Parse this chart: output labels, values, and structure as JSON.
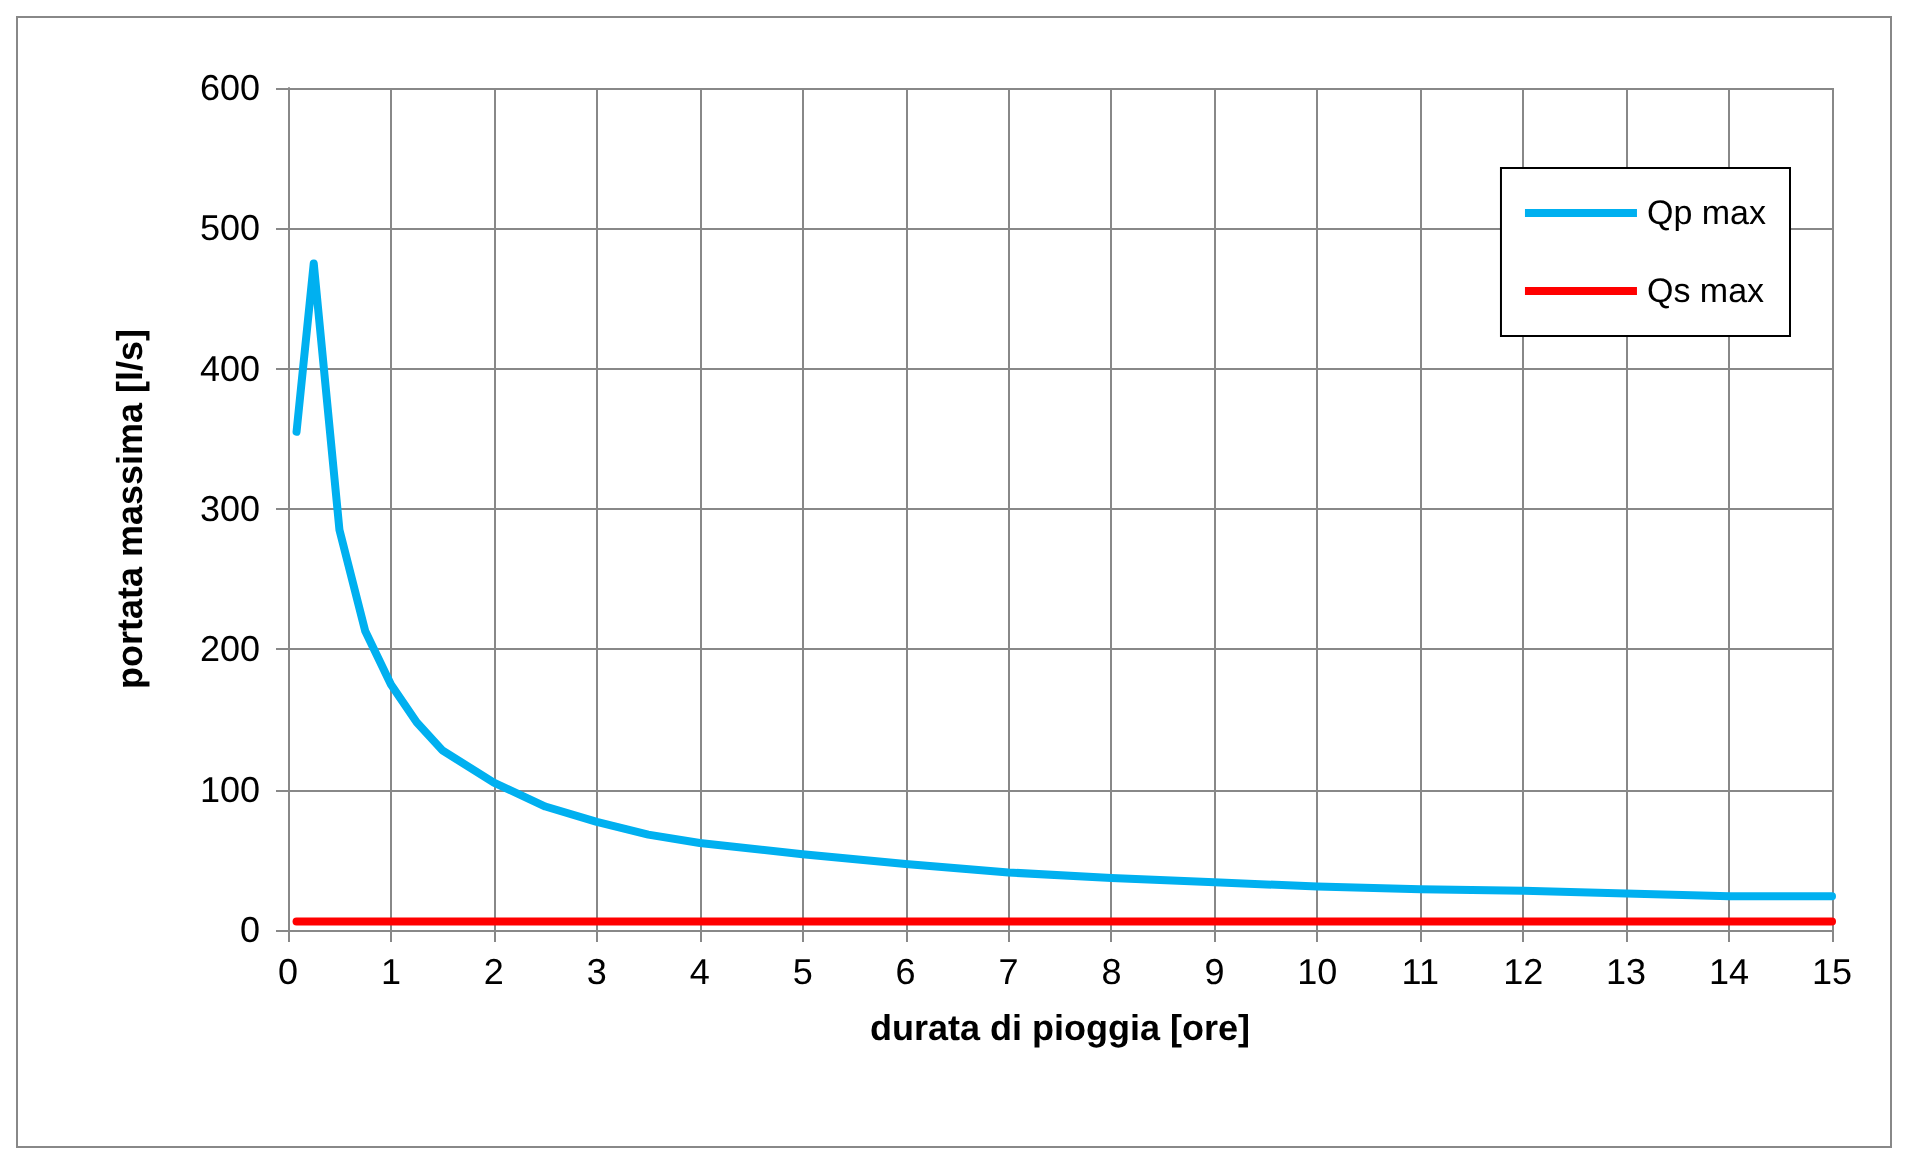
{
  "chart_data": {
    "type": "line",
    "xlabel": "durata di pioggia [ore]",
    "ylabel": "portata massima [l/s]",
    "xlim": [
      0,
      15
    ],
    "xticks": [
      0,
      1,
      2,
      3,
      4,
      5,
      6,
      7,
      8,
      9,
      10,
      11,
      12,
      13,
      14,
      15
    ],
    "ylim": [
      0,
      600
    ],
    "yticks": [
      0,
      100,
      200,
      300,
      400,
      500,
      600
    ],
    "grid": true,
    "legend": "top right",
    "marker": "none",
    "line_style": "solid",
    "series": [
      {
        "name": "Qp max",
        "color": "#00b0f0",
        "x": [
          0.083,
          0.25,
          0.5,
          0.75,
          1,
          1.25,
          1.5,
          2,
          2.5,
          3,
          3.5,
          4,
          5,
          6,
          7,
          8,
          9,
          10,
          11,
          12,
          13,
          14,
          15
        ],
        "values": [
          355,
          475,
          285,
          213,
          175,
          148,
          128,
          105,
          88,
          77,
          68,
          62,
          54,
          47,
          41,
          37,
          34,
          31,
          29,
          28,
          26,
          24,
          24
        ]
      },
      {
        "name": "Qs max",
        "color": "#ff0000",
        "x": [
          0.083,
          15
        ],
        "values": [
          6,
          6
        ]
      }
    ]
  }
}
